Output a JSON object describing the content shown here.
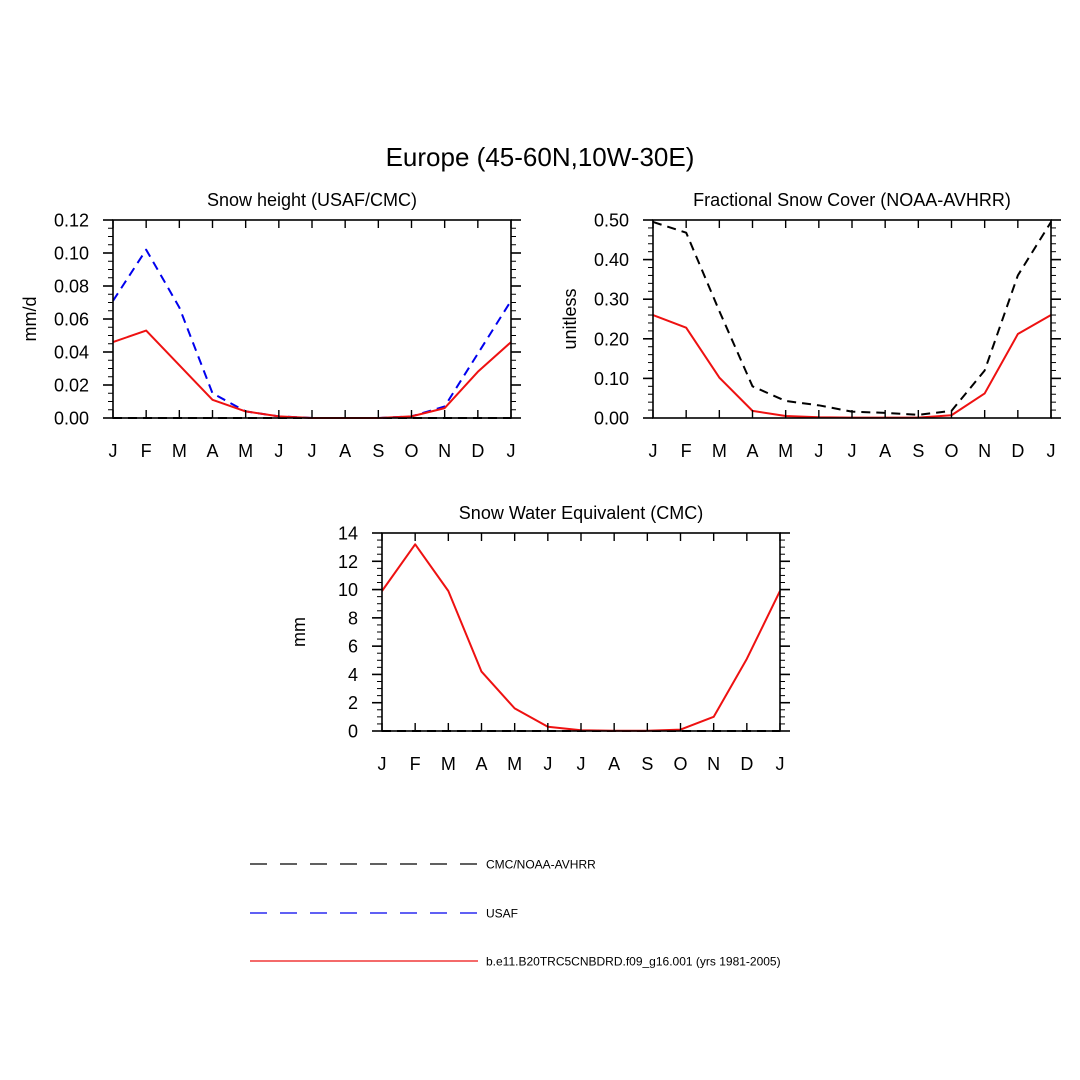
{
  "figure": {
    "title": "Europe (45-60N,10W-30E)"
  },
  "styles": {
    "cmc_noaa": {
      "color": "#000000",
      "dash": "dashed"
    },
    "usaf": {
      "color": "#0000ee",
      "dash": "dashed"
    },
    "model": {
      "color": "#ee1111",
      "dash": "solid"
    }
  },
  "legend": [
    {
      "key": "cmc_noaa",
      "label": "CMC/NOAA-AVHRR"
    },
    {
      "key": "usaf",
      "label": "USAF"
    },
    {
      "key": "model",
      "label": "b.e11.B20TRC5CNBDRD.f09_g16.001 (yrs 1981-2005)"
    }
  ],
  "chart_data": [
    {
      "type": "line",
      "title": "Snow height (USAF/CMC)",
      "xlabel": "",
      "ylabel": "mm/d",
      "categories": [
        "J",
        "F",
        "M",
        "A",
        "M",
        "J",
        "J",
        "A",
        "S",
        "O",
        "N",
        "D",
        "J"
      ],
      "ylim": [
        0,
        0.12
      ],
      "yticks": [
        0.0,
        0.02,
        0.04,
        0.06,
        0.08,
        0.1,
        0.12
      ],
      "ytick_labels": [
        "0.00",
        "0.02",
        "0.04",
        "0.06",
        "0.08",
        "0.10",
        "0.12"
      ],
      "y_minor_step": 0.005,
      "series": [
        {
          "key": "cmc_noaa",
          "values": [
            0,
            0,
            0,
            0,
            0,
            0,
            0,
            0,
            0,
            0,
            0,
            0,
            0
          ]
        },
        {
          "key": "usaf",
          "values": [
            0.071,
            0.102,
            0.067,
            0.015,
            0.004,
            0.001,
            0,
            0,
            0,
            0.001,
            0.007,
            0.039,
            0.071
          ]
        },
        {
          "key": "model",
          "values": [
            0.046,
            0.053,
            0.032,
            0.011,
            0.004,
            0.001,
            0,
            0,
            0,
            0.001,
            0.006,
            0.028,
            0.046
          ]
        }
      ]
    },
    {
      "type": "line",
      "title": "Fractional Snow Cover (NOAA-AVHRR)",
      "xlabel": "",
      "ylabel": "unitless",
      "categories": [
        "J",
        "F",
        "M",
        "A",
        "M",
        "J",
        "J",
        "A",
        "S",
        "O",
        "N",
        "D",
        "J"
      ],
      "ylim": [
        0,
        0.5
      ],
      "yticks": [
        0.0,
        0.1,
        0.2,
        0.3,
        0.4,
        0.5
      ],
      "ytick_labels": [
        "0.00",
        "0.10",
        "0.20",
        "0.30",
        "0.40",
        "0.50"
      ],
      "y_minor_step": 0.02,
      "series": [
        {
          "key": "cmc_noaa",
          "values": [
            0.495,
            0.468,
            0.27,
            0.08,
            0.043,
            0.032,
            0.016,
            0.013,
            0.008,
            0.018,
            0.12,
            0.36,
            0.495
          ]
        },
        {
          "key": "model",
          "values": [
            0.26,
            0.228,
            0.102,
            0.018,
            0.005,
            0.002,
            0.001,
            0.001,
            0.001,
            0.007,
            0.062,
            0.212,
            0.26
          ]
        }
      ]
    },
    {
      "type": "line",
      "title": "Snow Water Equivalent (CMC)",
      "xlabel": "",
      "ylabel": "mm",
      "categories": [
        "J",
        "F",
        "M",
        "A",
        "M",
        "J",
        "J",
        "A",
        "S",
        "O",
        "N",
        "D",
        "J"
      ],
      "ylim": [
        0,
        14
      ],
      "yticks": [
        0,
        2,
        4,
        6,
        8,
        10,
        12,
        14
      ],
      "ytick_labels": [
        "0",
        "2",
        "4",
        "6",
        "8",
        "10",
        "12",
        "14"
      ],
      "y_minor_step": 0.5,
      "series": [
        {
          "key": "cmc_noaa",
          "values": [
            0,
            0,
            0,
            0,
            0,
            0,
            0,
            0,
            0,
            0,
            0,
            0,
            0
          ]
        },
        {
          "key": "model",
          "values": [
            9.9,
            13.2,
            9.9,
            4.2,
            1.6,
            0.3,
            0.05,
            0.02,
            0.02,
            0.1,
            1.0,
            5.1,
            9.9
          ]
        }
      ]
    }
  ]
}
